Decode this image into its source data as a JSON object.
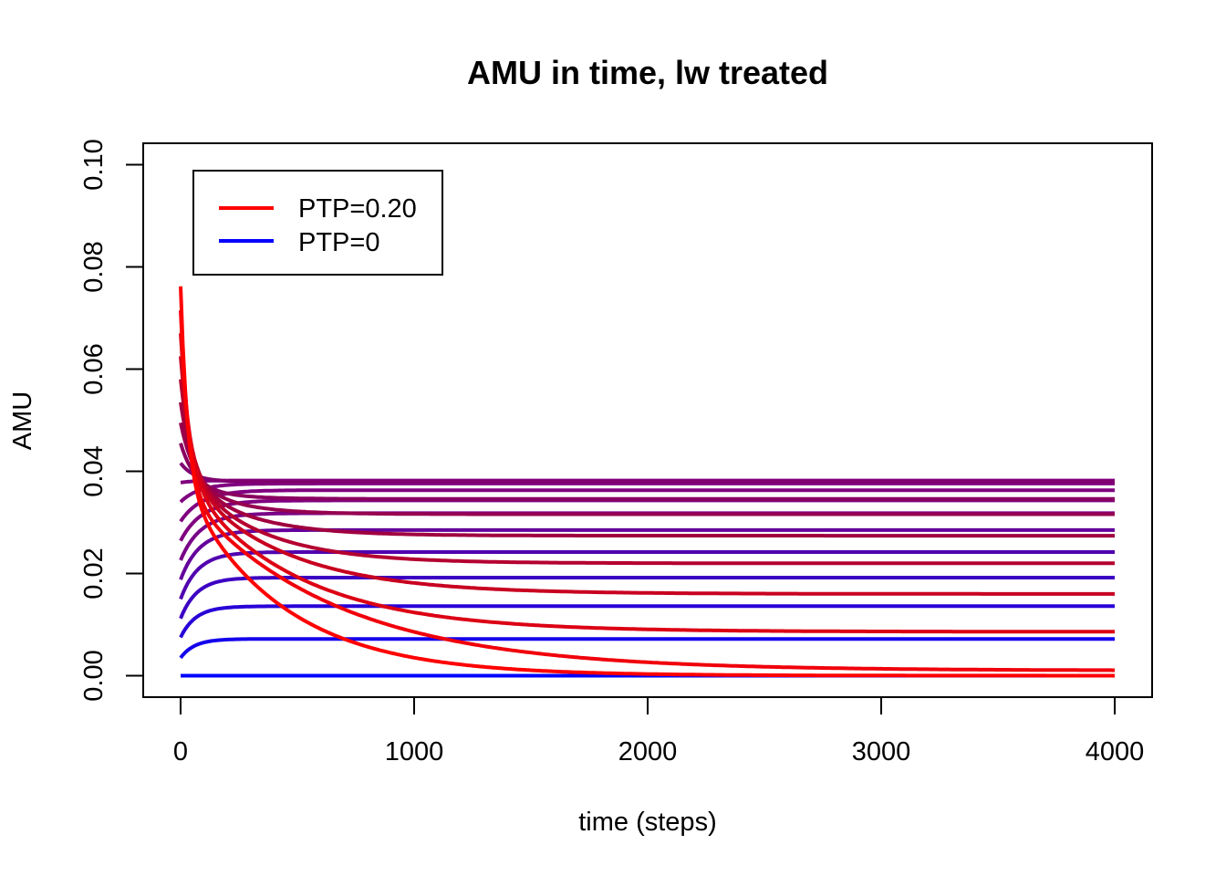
{
  "chart_data": {
    "type": "line",
    "title": "AMU in time, lw treated",
    "xlabel": "time (steps)",
    "ylabel": "AMU",
    "xlim": [
      -160,
      4160
    ],
    "ylim": [
      -0.0042,
      0.1042
    ],
    "x_ticks": [
      0,
      1000,
      2000,
      3000,
      4000
    ],
    "x_tick_labels": [
      "0",
      "1000",
      "2000",
      "3000",
      "4000"
    ],
    "y_ticks": [
      0.0,
      0.02,
      0.04,
      0.06,
      0.08,
      0.1
    ],
    "y_tick_labels": [
      "0.00",
      "0.02",
      "0.04",
      "0.06",
      "0.08",
      "0.10"
    ],
    "grid": false,
    "legend": {
      "position": "top-left",
      "entries": [
        {
          "label": "PTP=0.20",
          "color": "#ff0000"
        },
        {
          "label": "PTP=0",
          "color": "#0000ff"
        }
      ]
    },
    "x_range": [
      0,
      4000
    ],
    "series": [
      {
        "start": 0.0,
        "end": 0.0,
        "rate_early": 20,
        "rate_late": 20,
        "w": 1,
        "color": "#0000ff"
      },
      {
        "start": 0.0035,
        "end": 0.0072,
        "rate_early": 60,
        "rate_late": 60,
        "w": 1,
        "color": "#1400eb"
      },
      {
        "start": 0.0075,
        "end": 0.0136,
        "rate_early": 65,
        "rate_late": 65,
        "w": 1,
        "color": "#2800d7"
      },
      {
        "start": 0.0112,
        "end": 0.0192,
        "rate_early": 70,
        "rate_late": 70,
        "w": 1,
        "color": "#3c00c3"
      },
      {
        "start": 0.015,
        "end": 0.0242,
        "rate_early": 75,
        "rate_late": 75,
        "w": 1,
        "color": "#5000af"
      },
      {
        "start": 0.0188,
        "end": 0.0285,
        "rate_early": 80,
        "rate_late": 80,
        "w": 1,
        "color": "#64009b"
      },
      {
        "start": 0.0226,
        "end": 0.0318,
        "rate_early": 85,
        "rate_late": 85,
        "w": 1,
        "color": "#780087"
      },
      {
        "start": 0.0264,
        "end": 0.0343,
        "rate_early": 90,
        "rate_late": 90,
        "w": 1,
        "color": "#800080"
      },
      {
        "start": 0.0302,
        "end": 0.0363,
        "rate_early": 90,
        "rate_late": 90,
        "w": 1,
        "color": "#800080"
      },
      {
        "start": 0.034,
        "end": 0.0376,
        "rate_early": 80,
        "rate_late": 80,
        "w": 1,
        "color": "#800080"
      },
      {
        "start": 0.0378,
        "end": 0.0382,
        "rate_early": 60,
        "rate_late": 60,
        "w": 1,
        "color": "#800080"
      },
      {
        "start": 0.0416,
        "end": 0.038,
        "rate_early": 60,
        "rate_late": 60,
        "w": 1,
        "color": "#800070"
      },
      {
        "start": 0.0455,
        "end": 0.0346,
        "rate_early": 60,
        "rate_late": 150,
        "w": 0.72,
        "color": "#8a0060"
      },
      {
        "start": 0.0495,
        "end": 0.0316,
        "rate_early": 60,
        "rate_late": 200,
        "w": 0.62,
        "color": "#960050"
      },
      {
        "start": 0.0535,
        "end": 0.0274,
        "rate_early": 55,
        "rate_late": 260,
        "w": 0.55,
        "color": "#a00040"
      },
      {
        "start": 0.058,
        "end": 0.022,
        "rate_early": 50,
        "rate_late": 320,
        "w": 0.5,
        "color": "#b40030"
      },
      {
        "start": 0.0625,
        "end": 0.016,
        "rate_early": 45,
        "rate_late": 420,
        "w": 0.5,
        "color": "#c80020"
      },
      {
        "start": 0.067,
        "end": 0.0086,
        "rate_early": 40,
        "rate_late": 480,
        "w": 0.48,
        "color": "#dc0014"
      },
      {
        "start": 0.0715,
        "end": 0.001,
        "rate_early": 35,
        "rate_late": 650,
        "w": 0.5,
        "color": "#f0000a"
      },
      {
        "start": 0.0762,
        "end": 0.0,
        "rate_early": 30,
        "rate_late": 420,
        "w": 0.5,
        "color": "#ff0000"
      }
    ]
  }
}
